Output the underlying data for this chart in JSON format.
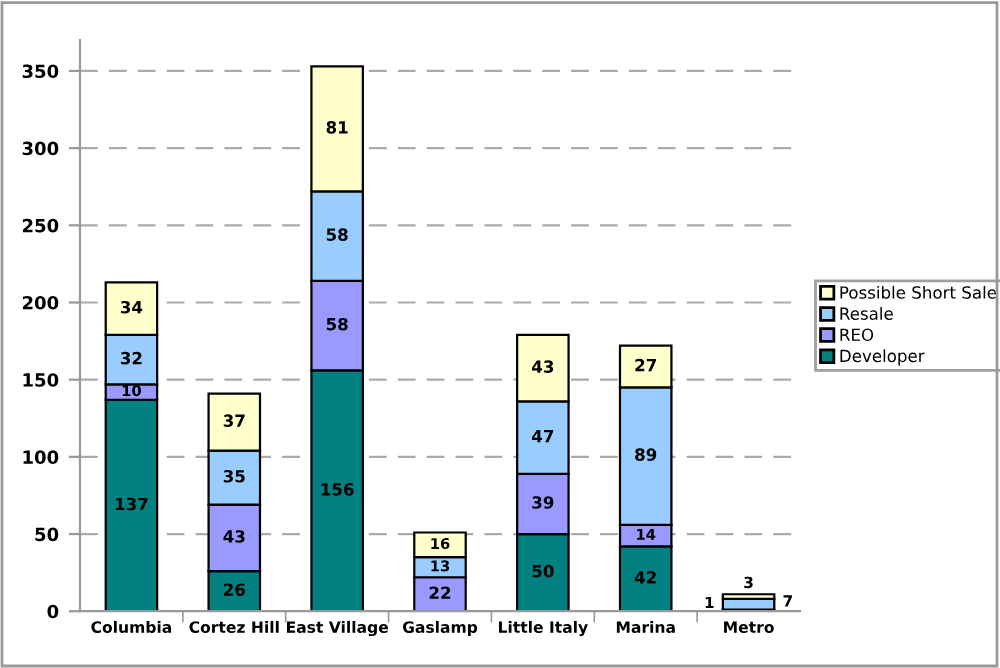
{
  "chart_data": {
    "type": "bar",
    "stacked": true,
    "categories": [
      "Columbia",
      "Cortez Hill",
      "East Village",
      "Gaslamp",
      "Little Italy",
      "Marina",
      "Metro"
    ],
    "series": [
      {
        "name": "Developer",
        "color": "#008080",
        "values": [
          137,
          26,
          156,
          0,
          50,
          42,
          1
        ],
        "value_labels": [
          "137",
          "26",
          "156",
          null,
          "50",
          "42",
          "1"
        ]
      },
      {
        "name": "REO",
        "color": "#9999ff",
        "values": [
          10,
          43,
          58,
          22,
          39,
          14,
          0
        ],
        "value_labels": [
          "10",
          "43",
          "58",
          "22",
          "39",
          "14",
          null
        ]
      },
      {
        "name": "Resale",
        "color": "#99ccff",
        "values": [
          32,
          35,
          58,
          13,
          47,
          89,
          7
        ],
        "value_labels": [
          "32",
          "35",
          "58",
          "13",
          "47",
          "89",
          "7"
        ]
      },
      {
        "name": "Possible Short Sale",
        "color": "#ffffcc",
        "values": [
          34,
          37,
          81,
          16,
          43,
          27,
          3
        ],
        "value_labels": [
          "34",
          "37",
          "81",
          "16",
          "43",
          "27",
          "3"
        ]
      }
    ],
    "ylim": [
      0,
      370
    ],
    "yticks": [
      0,
      50,
      100,
      150,
      200,
      250,
      300,
      350
    ],
    "grid": "y",
    "legend": "right"
  }
}
